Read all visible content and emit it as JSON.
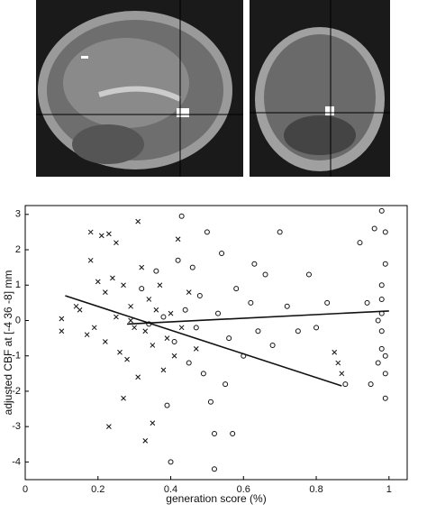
{
  "chart_data": {
    "type": "scatter",
    "xlabel": "generation score (%)",
    "ylabel": "adjusted CBF at [-4  36  -8] mm",
    "xlim": [
      0,
      1.05
    ],
    "ylim": [
      -4.5,
      3.25
    ],
    "xticks": [
      0,
      0.2,
      0.4,
      0.6,
      0.8,
      1
    ],
    "yticks": [
      -4,
      -3,
      -2,
      -1,
      0,
      1,
      2,
      3
    ],
    "color": "#111",
    "series": [
      {
        "marker": "x",
        "x": [
          0.1,
          0.1,
          0.14,
          0.15,
          0.17,
          0.18,
          0.18,
          0.19,
          0.2,
          0.21,
          0.22,
          0.22,
          0.23,
          0.23,
          0.24,
          0.25,
          0.25,
          0.26,
          0.27,
          0.28,
          0.29,
          0.3,
          0.31,
          0.31,
          0.32,
          0.33,
          0.34,
          0.35,
          0.35,
          0.36,
          0.37,
          0.38,
          0.39,
          0.4,
          0.41,
          0.42,
          0.43,
          0.45,
          0.47,
          0.85,
          0.86,
          0.87,
          0.27,
          0.29,
          0.33
        ],
        "values": [
          -0.3,
          0.05,
          0.4,
          0.3,
          -0.4,
          2.5,
          1.7,
          -0.2,
          1.1,
          2.4,
          0.8,
          -0.6,
          2.45,
          -3.0,
          1.2,
          2.2,
          0.1,
          -0.9,
          1.0,
          -1.1,
          0.4,
          -0.2,
          2.8,
          -1.6,
          1.5,
          -3.4,
          0.6,
          -2.9,
          -0.7,
          0.3,
          1.0,
          -1.4,
          -0.5,
          0.2,
          -1.0,
          2.3,
          -0.2,
          0.8,
          -0.8,
          -0.9,
          -1.2,
          -1.5,
          -2.2,
          0.0,
          -0.3
        ]
      },
      {
        "marker": "o",
        "x": [
          0.32,
          0.34,
          0.36,
          0.38,
          0.39,
          0.4,
          0.41,
          0.42,
          0.43,
          0.44,
          0.45,
          0.46,
          0.47,
          0.48,
          0.49,
          0.5,
          0.51,
          0.52,
          0.52,
          0.53,
          0.54,
          0.55,
          0.56,
          0.57,
          0.58,
          0.6,
          0.62,
          0.63,
          0.64,
          0.66,
          0.68,
          0.7,
          0.72,
          0.75,
          0.78,
          0.8,
          0.83,
          0.88,
          0.92,
          0.94,
          0.95,
          0.96,
          0.97,
          0.98,
          0.98,
          0.98,
          0.98,
          0.98,
          0.98,
          0.99,
          0.99,
          0.99,
          0.99,
          0.99,
          0.97
        ],
        "values": [
          0.9,
          -0.1,
          1.4,
          0.1,
          -2.4,
          -4.0,
          -0.6,
          1.7,
          2.95,
          0.3,
          -1.2,
          1.5,
          -0.2,
          0.7,
          -1.5,
          2.5,
          -2.3,
          -3.2,
          -4.2,
          0.2,
          1.9,
          -1.8,
          -0.5,
          -3.2,
          0.9,
          -1.0,
          0.5,
          1.6,
          -0.3,
          1.3,
          -0.7,
          2.5,
          0.4,
          -0.3,
          1.3,
          -0.2,
          0.5,
          -1.8,
          2.2,
          0.5,
          -1.8,
          2.6,
          -1.2,
          3.1,
          1.0,
          0.6,
          0.2,
          -0.3,
          -0.8,
          -1.5,
          -2.2,
          2.5,
          1.6,
          -1.0,
          0.0
        ]
      }
    ],
    "fit_lines": [
      {
        "x": [
          0.11,
          0.87
        ],
        "values": [
          0.7,
          -1.85
        ]
      },
      {
        "x": [
          0.28,
          1.0
        ],
        "values": [
          -0.1,
          0.27
        ]
      }
    ]
  }
}
